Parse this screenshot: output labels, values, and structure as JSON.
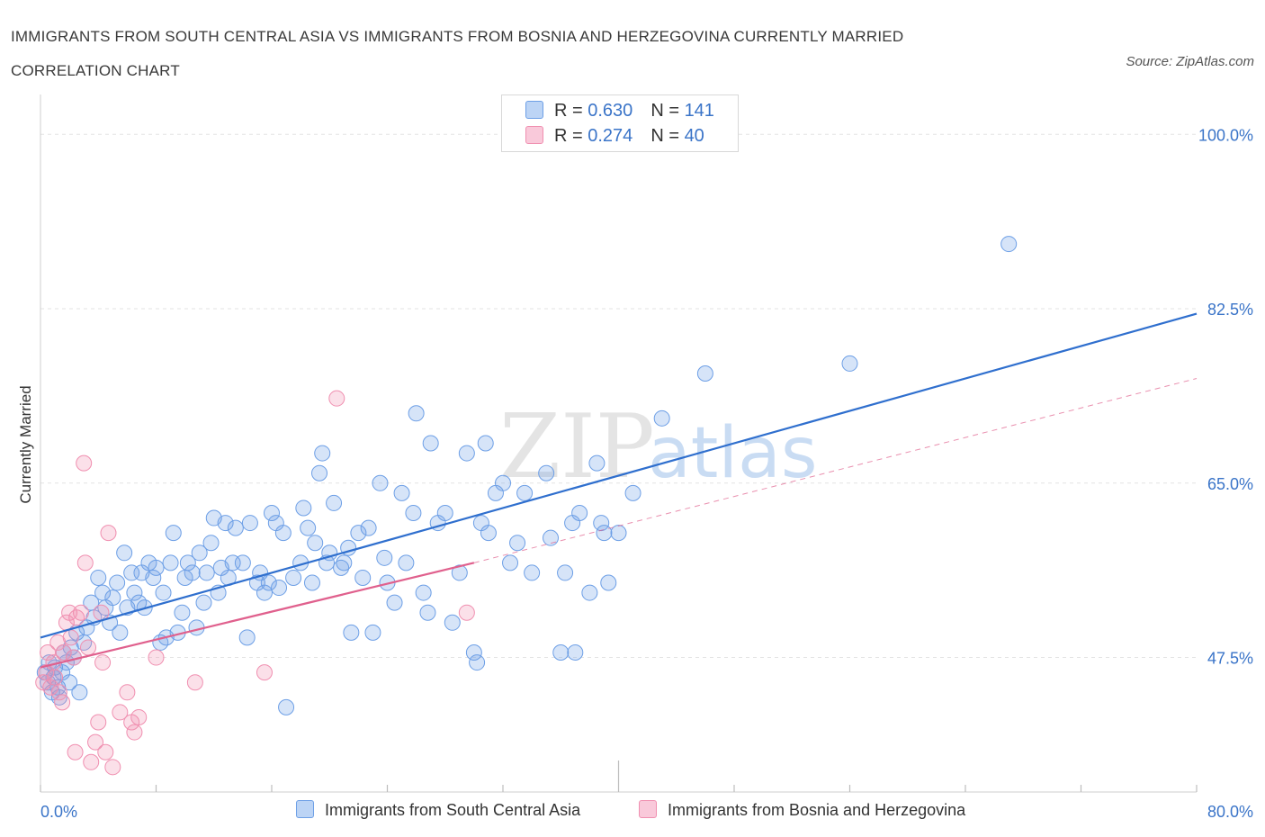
{
  "header": {
    "title": "IMMIGRANTS FROM SOUTH CENTRAL ASIA VS IMMIGRANTS FROM BOSNIA AND HERZEGOVINA CURRENTLY MARRIED CORRELATION CHART",
    "source": "Source: ZipAtlas.com"
  },
  "watermark": {
    "zip": "ZIP",
    "atlas": "atlas"
  },
  "legend": {
    "rows": [
      {
        "r_label": "R = ",
        "r_value": "0.630",
        "n_label": "N = ",
        "n_value": "141"
      },
      {
        "r_label": "R = ",
        "r_value": " 0.274",
        "n_label": "N = ",
        "n_value": "40"
      }
    ]
  },
  "chart_data": {
    "type": "scatter",
    "ylabel": "Currently Married",
    "xlim": [
      0,
      80
    ],
    "ylim": [
      34,
      104
    ],
    "x_tick_labels": [
      "0.0%",
      "80.0%"
    ],
    "y_ticks": [
      {
        "value": 100,
        "label": "100.0%"
      },
      {
        "value": 82.5,
        "label": "82.5%"
      },
      {
        "value": 65,
        "label": "65.0%"
      },
      {
        "value": 47.5,
        "label": "47.5%"
      }
    ],
    "colors": {
      "blue": "#6d9fe6",
      "blue_line": "#2f6fce",
      "pink": "#f08fb0",
      "pink_line": "#e0608d",
      "axis_text": "#3a74c8"
    },
    "series": [
      {
        "name": "Immigrants from South Central Asia",
        "trend": {
          "x": [
            0,
            80
          ],
          "y": [
            49.5,
            82
          ]
        },
        "points": [
          [
            0.3,
            46
          ],
          [
            0.5,
            45
          ],
          [
            0.6,
            47
          ],
          [
            0.8,
            44
          ],
          [
            0.9,
            45.5
          ],
          [
            1,
            46.5
          ],
          [
            1.2,
            44.5
          ],
          [
            1.3,
            43.5
          ],
          [
            1.5,
            46
          ],
          [
            1.6,
            48
          ],
          [
            1.8,
            47
          ],
          [
            2,
            45
          ],
          [
            2.1,
            48.5
          ],
          [
            2.3,
            47.5
          ],
          [
            2.5,
            50
          ],
          [
            2.7,
            44
          ],
          [
            3,
            49
          ],
          [
            3.2,
            50.5
          ],
          [
            3.5,
            53
          ],
          [
            3.7,
            51.5
          ],
          [
            4,
            55.5
          ],
          [
            4.3,
            54
          ],
          [
            4.5,
            52.5
          ],
          [
            4.8,
            51
          ],
          [
            5,
            53.5
          ],
          [
            5.3,
            55
          ],
          [
            5.5,
            50
          ],
          [
            5.8,
            58
          ],
          [
            6,
            52.5
          ],
          [
            6.3,
            56
          ],
          [
            6.5,
            54
          ],
          [
            6.8,
            53
          ],
          [
            7,
            56
          ],
          [
            7.2,
            52.5
          ],
          [
            7.5,
            57
          ],
          [
            7.8,
            55.5
          ],
          [
            8,
            56.5
          ],
          [
            8.3,
            49
          ],
          [
            8.5,
            54
          ],
          [
            8.7,
            49.5
          ],
          [
            9,
            57
          ],
          [
            9.2,
            60
          ],
          [
            9.5,
            50
          ],
          [
            9.8,
            52
          ],
          [
            10,
            55.5
          ],
          [
            10.2,
            57
          ],
          [
            10.5,
            56
          ],
          [
            10.8,
            50.5
          ],
          [
            11,
            58
          ],
          [
            11.3,
            53
          ],
          [
            11.5,
            56
          ],
          [
            11.8,
            59
          ],
          [
            12,
            61.5
          ],
          [
            12.3,
            54
          ],
          [
            12.5,
            56.5
          ],
          [
            12.8,
            61
          ],
          [
            13,
            55.5
          ],
          [
            13.3,
            57
          ],
          [
            13.5,
            60.5
          ],
          [
            14,
            57
          ],
          [
            14.3,
            49.5
          ],
          [
            14.5,
            61
          ],
          [
            15,
            55
          ],
          [
            15.2,
            56
          ],
          [
            15.5,
            54
          ],
          [
            15.8,
            55
          ],
          [
            16,
            62
          ],
          [
            16.3,
            61
          ],
          [
            16.5,
            54.5
          ],
          [
            16.8,
            60
          ],
          [
            17,
            42.5
          ],
          [
            17.5,
            55.5
          ],
          [
            18,
            57
          ],
          [
            18.2,
            62.5
          ],
          [
            18.5,
            60.5
          ],
          [
            18.8,
            55
          ],
          [
            19,
            59
          ],
          [
            19.3,
            66
          ],
          [
            19.5,
            68
          ],
          [
            19.8,
            57
          ],
          [
            20,
            58
          ],
          [
            20.3,
            63
          ],
          [
            20.8,
            56.5
          ],
          [
            21,
            57
          ],
          [
            21.3,
            58.5
          ],
          [
            21.5,
            50
          ],
          [
            22,
            60
          ],
          [
            22.3,
            55.5
          ],
          [
            22.7,
            60.5
          ],
          [
            23,
            50
          ],
          [
            23.5,
            65
          ],
          [
            23.8,
            57.5
          ],
          [
            24,
            55
          ],
          [
            24.5,
            53
          ],
          [
            25,
            64
          ],
          [
            25.3,
            57
          ],
          [
            25.8,
            62
          ],
          [
            26,
            72
          ],
          [
            26.5,
            54
          ],
          [
            26.8,
            52
          ],
          [
            27,
            69
          ],
          [
            27.5,
            61
          ],
          [
            28,
            62
          ],
          [
            28.5,
            51
          ],
          [
            29,
            56
          ],
          [
            29.5,
            68
          ],
          [
            30,
            48
          ],
          [
            30.2,
            47
          ],
          [
            30.5,
            61
          ],
          [
            30.8,
            69
          ],
          [
            31,
            60
          ],
          [
            31.5,
            64
          ],
          [
            32,
            65
          ],
          [
            32.5,
            57
          ],
          [
            33,
            59
          ],
          [
            33.5,
            64
          ],
          [
            34,
            56
          ],
          [
            35,
            66
          ],
          [
            35.3,
            59.5
          ],
          [
            36,
            48
          ],
          [
            36.3,
            56
          ],
          [
            36.8,
            61
          ],
          [
            37,
            48
          ],
          [
            37.3,
            62
          ],
          [
            38,
            54
          ],
          [
            38.5,
            67
          ],
          [
            38.8,
            61
          ],
          [
            39,
            60
          ],
          [
            39.3,
            55
          ],
          [
            40,
            60
          ],
          [
            41,
            64
          ],
          [
            43,
            71.5
          ],
          [
            46,
            76
          ],
          [
            56,
            77
          ],
          [
            67,
            89
          ]
        ]
      },
      {
        "name": "Immigrants from Bosnia and Herzegovina",
        "trend": {
          "x": [
            0,
            30
          ],
          "y": [
            46.5,
            57
          ]
        },
        "dashed_extension": {
          "x": [
            30,
            80
          ],
          "y": [
            57,
            75.5
          ]
        },
        "points": [
          [
            0.2,
            45
          ],
          [
            0.4,
            46
          ],
          [
            0.5,
            48
          ],
          [
            0.7,
            44.5
          ],
          [
            0.9,
            47
          ],
          [
            1,
            45.5
          ],
          [
            1.2,
            49
          ],
          [
            1.3,
            44
          ],
          [
            1.5,
            43
          ],
          [
            1.6,
            48
          ],
          [
            1.8,
            51
          ],
          [
            2,
            52
          ],
          [
            2.1,
            49.5
          ],
          [
            2.3,
            47.5
          ],
          [
            2.4,
            38
          ],
          [
            2.5,
            51.5
          ],
          [
            2.8,
            52
          ],
          [
            3,
            67
          ],
          [
            3.1,
            57
          ],
          [
            3.3,
            48.5
          ],
          [
            3.5,
            37
          ],
          [
            3.8,
            39
          ],
          [
            4,
            41
          ],
          [
            4.2,
            52
          ],
          [
            4.3,
            47
          ],
          [
            4.5,
            38
          ],
          [
            4.7,
            60
          ],
          [
            5,
            36.5
          ],
          [
            5.5,
            42
          ],
          [
            6,
            44
          ],
          [
            6.3,
            41
          ],
          [
            6.5,
            40
          ],
          [
            6.8,
            41.5
          ],
          [
            8,
            47.5
          ],
          [
            10.7,
            45
          ],
          [
            15.5,
            46
          ],
          [
            20.5,
            73.5
          ],
          [
            29.5,
            52
          ]
        ]
      }
    ]
  }
}
